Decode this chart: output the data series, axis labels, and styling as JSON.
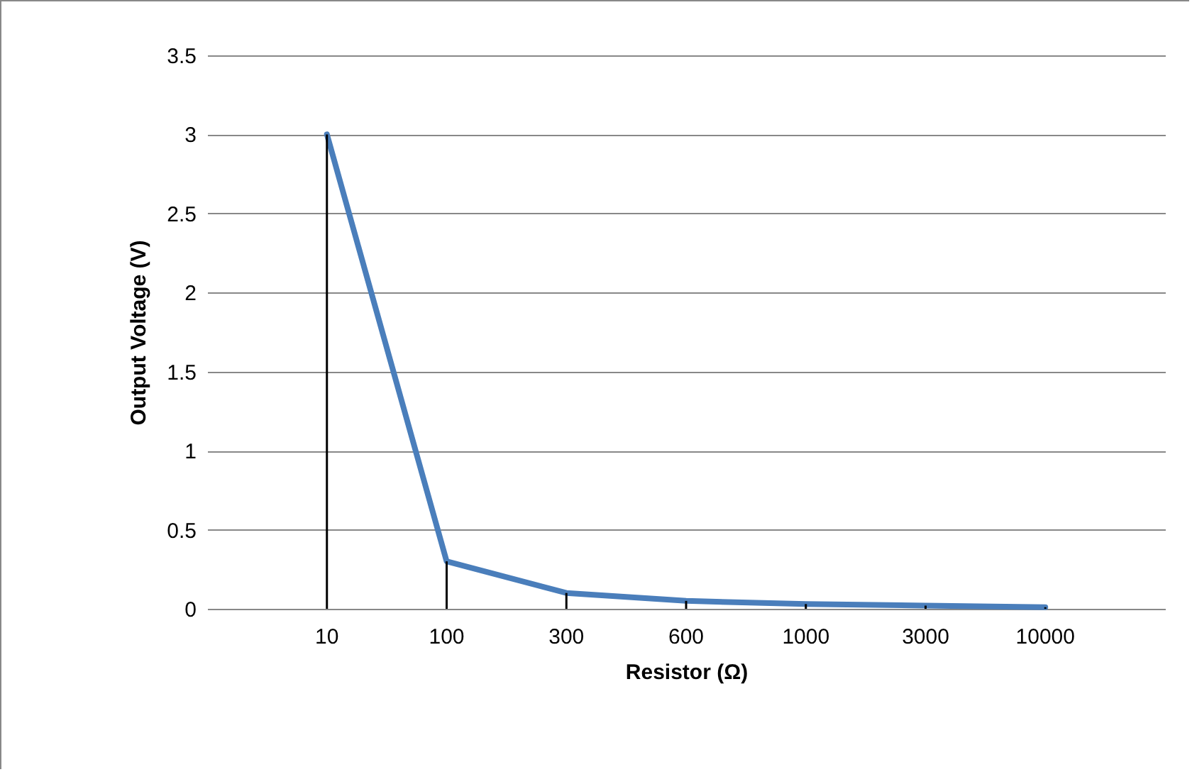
{
  "chart_data": {
    "type": "line",
    "xlabel": "Resistor (Ω)",
    "ylabel": "Output Voltage (V)",
    "categories": [
      "10",
      "100",
      "300",
      "600",
      "1000",
      "3000",
      "10000"
    ],
    "series": [
      {
        "color": "#4a7ebb",
        "values": [
          3,
          0.3,
          0.1,
          0.05,
          0.03,
          0.02,
          0.01
        ]
      },
      {
        "type": "bar",
        "color": "#000000",
        "values": [
          3,
          0.3,
          0.1,
          0.05,
          0.03,
          0.02,
          0.01
        ]
      }
    ],
    "ylim": [
      0,
      3.5
    ],
    "yticks": [
      0,
      0.5,
      1,
      1.5,
      2,
      2.5,
      3,
      3.5
    ],
    "grid": "y",
    "marker": "none",
    "line_style": "solid"
  }
}
